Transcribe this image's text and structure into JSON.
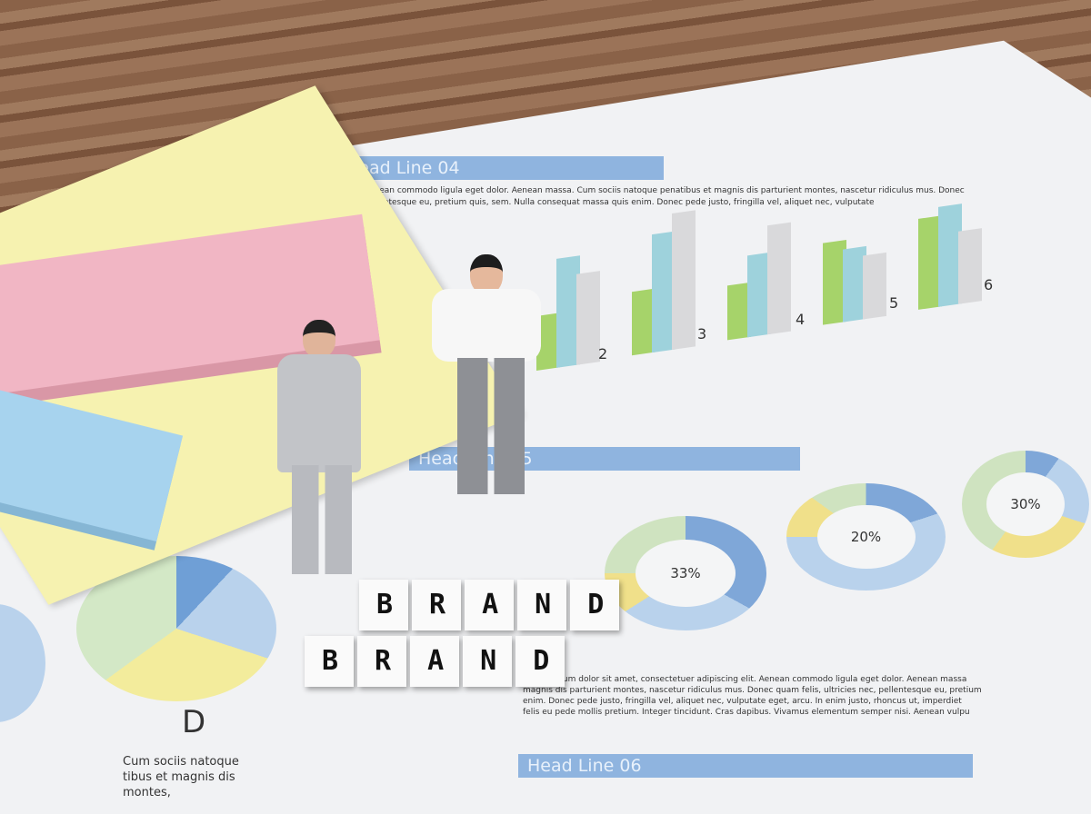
{
  "headlines": [
    "Head Line 04",
    "Head Line 05",
    "Head Line 06"
  ],
  "bar_numbers": [
    "2",
    "3",
    "4",
    "5",
    "6"
  ],
  "bar_colors": {
    "green": "#a6d36a",
    "blue": "#9ed2dc",
    "grey": "#d9d9db"
  },
  "percentages": [
    "33%",
    "20%",
    "30%"
  ],
  "letter": "D",
  "left_caption": [
    "Cum sociis natoque",
    "tibus et magnis dis",
    "montes,"
  ],
  "cube_words": [
    "BRAND",
    "BRAND"
  ],
  "top_text": [
    "Aenean commodo ligula eget dolor. Aenean massa. Cum sociis natoque penatibus et magnis dis parturient montes, nascetur ridiculus mus. Donec",
    "pellentesque eu, pretium quis, sem. Nulla consequat massa quis enim. Donec pede justo, fringilla vel, aliquet nec, vulputate"
  ],
  "paragraph": [
    "Lorem ipsum dolor sit amet, consectetuer adipiscing elit. Aenean commodo ligula eget dolor. Aenean massa",
    "magnis dis parturient montes, nascetur ridiculus mus. Donec quam felis, ultricies nec, pellentesque eu, pretium",
    "enim. Donec pede justo, fringilla vel, aliquet nec, vulputate eget, arcu. In enim justo, rhoncus ut, imperdiet",
    "felis eu pede mollis pretium. Integer tincidunt. Cras dapibus. Vivamus elementum semper nisi. Aenean vulpu"
  ]
}
